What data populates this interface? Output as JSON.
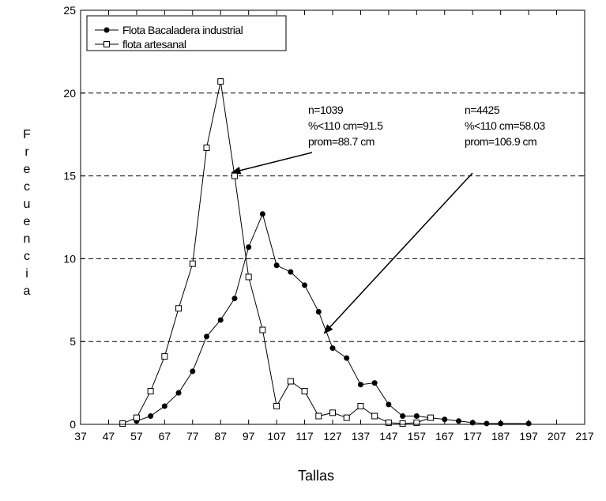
{
  "chart_data": {
    "type": "line",
    "title": "",
    "xlabel": "Tallas",
    "ylabel": "Frecuencia",
    "xlim": [
      37,
      217
    ],
    "ylim": [
      0,
      25
    ],
    "xticks": [
      "37",
      "47",
      "57",
      "67",
      "77",
      "87",
      "97",
      "107",
      "117",
      "127",
      "137",
      "147",
      "157",
      "167",
      "177",
      "187",
      "197",
      "207",
      "217"
    ],
    "yticks": [
      "0",
      "5",
      "10",
      "15",
      "20",
      "25"
    ],
    "grid": "horizontal-dashed",
    "legend": "top-left",
    "series": [
      {
        "name": "Flota Bacaladera industrial",
        "marker": "filled-circle",
        "x": [
          57,
          62,
          67,
          72,
          77,
          82,
          87,
          92,
          97,
          102,
          107,
          112,
          117,
          122,
          127,
          132,
          137,
          142,
          147,
          152,
          157,
          162,
          167,
          172,
          177,
          182,
          187,
          197
        ],
        "y": [
          0.2,
          0.5,
          1.1,
          1.9,
          3.2,
          5.3,
          6.3,
          7.6,
          10.7,
          12.7,
          9.6,
          9.2,
          8.4,
          6.8,
          4.6,
          4.0,
          2.4,
          2.5,
          1.2,
          0.5,
          0.5,
          0.4,
          0.3,
          0.2,
          0.1,
          0.05,
          0.05,
          0.05
        ]
      },
      {
        "name": "flota artesanal",
        "marker": "open-square",
        "x": [
          52,
          57,
          62,
          67,
          72,
          77,
          82,
          87,
          92,
          97,
          102,
          107,
          112,
          117,
          122,
          127,
          132,
          137,
          142,
          147,
          152,
          157,
          162
        ],
        "y": [
          0.05,
          0.4,
          2.0,
          4.1,
          7.0,
          9.7,
          16.7,
          20.7,
          15.0,
          8.9,
          5.7,
          1.1,
          2.6,
          2.0,
          0.5,
          0.7,
          0.4,
          1.1,
          0.5,
          0.1,
          0.05,
          0.1,
          0.4
        ]
      }
    ],
    "annotations": [
      {
        "lines": [
          "n=1039",
          "%<110 cm=91.5",
          "prom=88.7 cm"
        ],
        "arrow_to": [
          91,
          15.2
        ]
      },
      {
        "lines": [
          "n=4425",
          "%<110 cm=58.03",
          "prom=106.9 cm"
        ],
        "arrow_to": [
          124,
          5.5
        ]
      }
    ]
  }
}
